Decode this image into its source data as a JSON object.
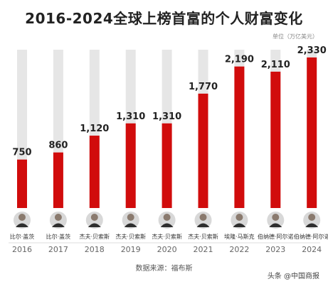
{
  "title": "2016-2024全球上榜首富的个人财富变化",
  "unit_label": "单位（万亿美元）",
  "source": "数据来源：福布斯",
  "watermark": "头条 @中国商报",
  "colors": {
    "bar": "#d10c0c",
    "track": "#e6e6e6",
    "label": "#222222",
    "year": "#666666"
  },
  "chart_data": {
    "type": "bar",
    "title": "2016-2024全球上榜首富的个人财富变化",
    "unit": "单位（万亿美元）",
    "categories": [
      "2016",
      "2017",
      "2018",
      "2019",
      "2020",
      "2021",
      "2022",
      "2023",
      "2024"
    ],
    "names": [
      "比尔·盖茨",
      "比尔·盖茨",
      "杰夫·贝索斯",
      "杰夫·贝索斯",
      "杰夫·贝索斯",
      "杰夫·贝索斯",
      "埃隆·马斯克",
      "伯纳德·阿尔诺",
      "伯纳德·阿尔诺"
    ],
    "values": [
      750,
      860,
      1120,
      1310,
      1310,
      1770,
      2190,
      2110,
      2330
    ],
    "value_labels": [
      "750",
      "860",
      "1,120",
      "1,310",
      "1,310",
      "1,770",
      "2,190",
      "2,110",
      "2,330"
    ],
    "ylim": [
      0,
      2450
    ],
    "grid": false,
    "legend": "none"
  }
}
